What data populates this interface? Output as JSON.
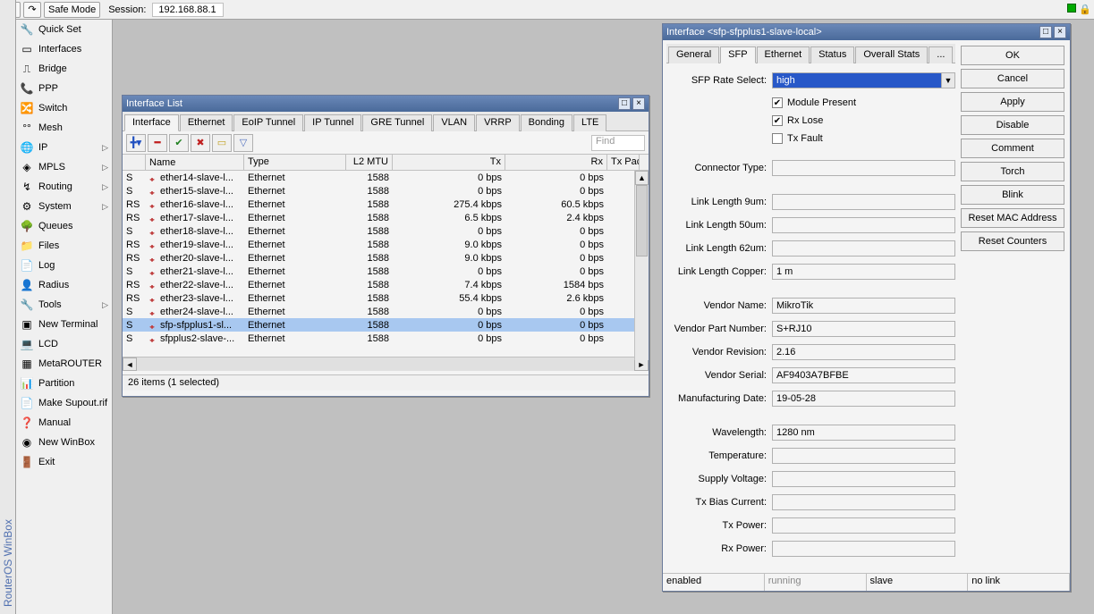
{
  "toolbar": {
    "safe_mode": "Safe Mode",
    "session_label": "Session:",
    "session_ip": "192.168.88.1"
  },
  "vertical_title": "RouterOS WinBox",
  "menu": {
    "items": [
      {
        "label": "Quick Set",
        "icon": "🔧"
      },
      {
        "label": "Interfaces",
        "icon": "▭"
      },
      {
        "label": "Bridge",
        "icon": "⎍"
      },
      {
        "label": "PPP",
        "icon": "📞"
      },
      {
        "label": "Switch",
        "icon": "🔀"
      },
      {
        "label": "Mesh",
        "icon": "°°"
      },
      {
        "label": "IP",
        "icon": "🌐",
        "sub": true
      },
      {
        "label": "MPLS",
        "icon": "◈",
        "sub": true
      },
      {
        "label": "Routing",
        "icon": "↯",
        "sub": true
      },
      {
        "label": "System",
        "icon": "⚙",
        "sub": true
      },
      {
        "label": "Queues",
        "icon": "🌳"
      },
      {
        "label": "Files",
        "icon": "📁"
      },
      {
        "label": "Log",
        "icon": "📄"
      },
      {
        "label": "Radius",
        "icon": "👤"
      },
      {
        "label": "Tools",
        "icon": "🔧",
        "sub": true
      },
      {
        "label": "New Terminal",
        "icon": "▣"
      },
      {
        "label": "LCD",
        "icon": "💻"
      },
      {
        "label": "MetaROUTER",
        "icon": "▦"
      },
      {
        "label": "Partition",
        "icon": "📊"
      },
      {
        "label": "Make Supout.rif",
        "icon": "📄"
      },
      {
        "label": "Manual",
        "icon": "❓"
      },
      {
        "label": "New WinBox",
        "icon": "◉"
      },
      {
        "label": "Exit",
        "icon": "🚪"
      }
    ]
  },
  "ilist": {
    "title": "Interface List",
    "tabs": [
      "Interface",
      "Ethernet",
      "EoIP Tunnel",
      "IP Tunnel",
      "GRE Tunnel",
      "VLAN",
      "VRRP",
      "Bonding",
      "LTE"
    ],
    "active_tab": 0,
    "find_placeholder": "Find",
    "columns": {
      "flag": "",
      "name": "Name",
      "type": "Type",
      "mtu": "L2 MTU",
      "tx": "Tx",
      "rx": "Rx",
      "txp": "Tx Pac"
    },
    "rows": [
      {
        "flag": "S",
        "name": "ether14-slave-l...",
        "type": "Ethernet",
        "mtu": "1588",
        "tx": "0 bps",
        "rx": "0 bps"
      },
      {
        "flag": "S",
        "name": "ether15-slave-l...",
        "type": "Ethernet",
        "mtu": "1588",
        "tx": "0 bps",
        "rx": "0 bps"
      },
      {
        "flag": "RS",
        "name": "ether16-slave-l...",
        "type": "Ethernet",
        "mtu": "1588",
        "tx": "275.4 kbps",
        "rx": "60.5 kbps"
      },
      {
        "flag": "RS",
        "name": "ether17-slave-l...",
        "type": "Ethernet",
        "mtu": "1588",
        "tx": "6.5 kbps",
        "rx": "2.4 kbps"
      },
      {
        "flag": "S",
        "name": "ether18-slave-l...",
        "type": "Ethernet",
        "mtu": "1588",
        "tx": "0 bps",
        "rx": "0 bps"
      },
      {
        "flag": "RS",
        "name": "ether19-slave-l...",
        "type": "Ethernet",
        "mtu": "1588",
        "tx": "9.0 kbps",
        "rx": "0 bps"
      },
      {
        "flag": "RS",
        "name": "ether20-slave-l...",
        "type": "Ethernet",
        "mtu": "1588",
        "tx": "9.0 kbps",
        "rx": "0 bps"
      },
      {
        "flag": "S",
        "name": "ether21-slave-l...",
        "type": "Ethernet",
        "mtu": "1588",
        "tx": "0 bps",
        "rx": "0 bps"
      },
      {
        "flag": "RS",
        "name": "ether22-slave-l...",
        "type": "Ethernet",
        "mtu": "1588",
        "tx": "7.4 kbps",
        "rx": "1584 bps"
      },
      {
        "flag": "RS",
        "name": "ether23-slave-l...",
        "type": "Ethernet",
        "mtu": "1588",
        "tx": "55.4 kbps",
        "rx": "2.6 kbps"
      },
      {
        "flag": "S",
        "name": "ether24-slave-l...",
        "type": "Ethernet",
        "mtu": "1588",
        "tx": "0 bps",
        "rx": "0 bps"
      },
      {
        "flag": "S",
        "name": "sfp-sfpplus1-sl...",
        "type": "Ethernet",
        "mtu": "1588",
        "tx": "0 bps",
        "rx": "0 bps",
        "sel": true
      },
      {
        "flag": "S",
        "name": "sfpplus2-slave-...",
        "type": "Ethernet",
        "mtu": "1588",
        "tx": "0 bps",
        "rx": "0 bps"
      }
    ],
    "status": "26 items (1 selected)"
  },
  "sfp": {
    "title": "Interface <sfp-sfpplus1-slave-local>",
    "tabs": [
      "General",
      "SFP",
      "Ethernet",
      "Status",
      "Overall Stats",
      "..."
    ],
    "active_tab": 1,
    "buttons": [
      "OK",
      "Cancel",
      "Apply",
      "Disable",
      "Comment",
      "Torch",
      "Blink",
      "Reset MAC Address",
      "Reset Counters"
    ],
    "rate_select_label": "SFP Rate Select:",
    "rate_select_value": "high",
    "cb_module_present": "Module Present",
    "cb_rx_lose": "Rx Lose",
    "cb_tx_fault": "Tx Fault",
    "cb_module_present_checked": true,
    "cb_rx_lose_checked": true,
    "cb_tx_fault_checked": false,
    "fields": [
      {
        "label": "Connector Type:",
        "value": ""
      },
      {
        "gap": true
      },
      {
        "label": "Link Length 9um:",
        "value": ""
      },
      {
        "label": "Link Length 50um:",
        "value": ""
      },
      {
        "label": "Link Length 62um:",
        "value": ""
      },
      {
        "label": "Link Length Copper:",
        "value": "1 m"
      },
      {
        "gap": true
      },
      {
        "label": "Vendor Name:",
        "value": "MikroTik"
      },
      {
        "label": "Vendor Part Number:",
        "value": "S+RJ10"
      },
      {
        "label": "Vendor Revision:",
        "value": "2.16"
      },
      {
        "label": "Vendor Serial:",
        "value": "AF9403A7BFBE"
      },
      {
        "label": "Manufacturing Date:",
        "value": "19-05-28"
      },
      {
        "gap": true
      },
      {
        "label": "Wavelength:",
        "value": "1280 nm"
      },
      {
        "label": "Temperature:",
        "value": ""
      },
      {
        "label": "Supply Voltage:",
        "value": ""
      },
      {
        "label": "Tx Bias Current:",
        "value": ""
      },
      {
        "label": "Tx Power:",
        "value": ""
      },
      {
        "label": "Rx Power:",
        "value": ""
      }
    ],
    "status": {
      "s1": "enabled",
      "s2": "running",
      "s3": "slave",
      "s4": "no link"
    }
  },
  "colors": {
    "titlebar_start": "#6a88b8",
    "titlebar_end": "#4a6a9a",
    "selection": "#a8c8f0",
    "combo_bg": "#2858c8"
  }
}
